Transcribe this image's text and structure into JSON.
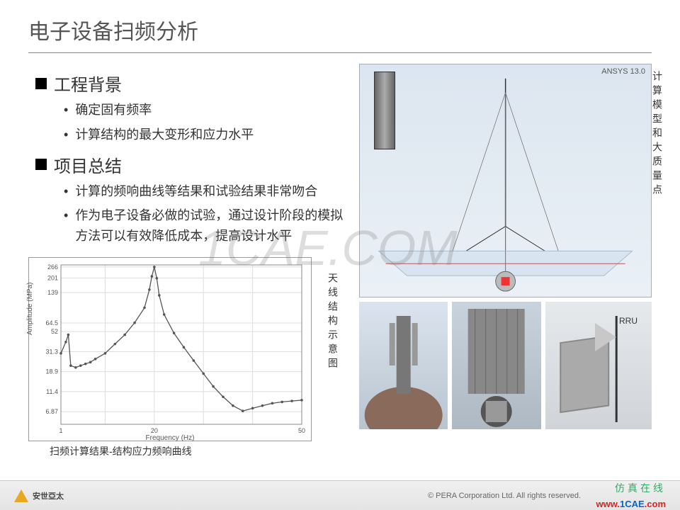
{
  "title": "电子设备扫频分析",
  "sections": [
    {
      "heading": "工程背景",
      "items": [
        "确定固有频率",
        "计算结构的最大变形和应力水平"
      ]
    },
    {
      "heading": "项目总结",
      "items": [
        "计算的频响曲线等结果和试验结果非常吻合",
        "作为电子设备必做的试验，通过设计阶段的模拟方法可以有效降低成本，提高设计水平"
      ]
    }
  ],
  "chart": {
    "type": "line",
    "x_label": "Frequency (Hz)",
    "y_label": "Amplitude (MPa)",
    "x_ticks": [
      "1",
      "20",
      "50"
    ],
    "y_ticks": [
      "6.87",
      "11.4",
      "18.9",
      "31.3",
      "52",
      "64.5",
      "139",
      "201",
      "266"
    ],
    "x_range": [
      1,
      50
    ],
    "y_range": [
      5,
      280
    ],
    "points": [
      [
        1,
        30
      ],
      [
        2,
        40
      ],
      [
        2.5,
        48
      ],
      [
        3,
        22
      ],
      [
        4,
        21
      ],
      [
        5,
        22
      ],
      [
        6,
        23
      ],
      [
        7,
        24
      ],
      [
        8,
        26
      ],
      [
        10,
        30
      ],
      [
        12,
        38
      ],
      [
        14,
        48
      ],
      [
        16,
        65
      ],
      [
        18,
        95
      ],
      [
        19,
        150
      ],
      [
        19.5,
        210
      ],
      [
        20,
        266
      ],
      [
        20.5,
        200
      ],
      [
        21,
        130
      ],
      [
        22,
        80
      ],
      [
        24,
        50
      ],
      [
        26,
        35
      ],
      [
        28,
        25
      ],
      [
        30,
        18
      ],
      [
        32,
        13
      ],
      [
        34,
        10
      ],
      [
        36,
        8
      ],
      [
        38,
        7
      ],
      [
        40,
        7.5
      ],
      [
        42,
        8
      ],
      [
        44,
        8.5
      ],
      [
        46,
        8.8
      ],
      [
        48,
        9
      ],
      [
        50,
        9.2
      ]
    ],
    "line_color": "#555555",
    "background_color": "#ffffff",
    "grid_color": "#dddddd",
    "caption": "扫频计算结果-结构应力频响曲线"
  },
  "side_label_chart": "天线结构示意图",
  "side_label_sim": "计算模型和大质量点",
  "ansys_tag": "ANSYS 13.0",
  "rru_label": "RRU",
  "watermark_text": "1CAE.COM",
  "footer": {
    "company_cn": "安世亞太",
    "copyright": "© PERA Corporation Ltd. All rights reserved.",
    "fz_online": "仿真在线",
    "site_url_prefix": "www.",
    "site_url_main": "1CAE",
    "site_url_suffix": ".com"
  },
  "colors": {
    "title_border": "#888888",
    "text_primary": "#333333",
    "logo_triangle": "#e8a820",
    "fz_green": "#33aa66",
    "cae_red": "#dd2222",
    "cae_blue": "#0066cc"
  }
}
